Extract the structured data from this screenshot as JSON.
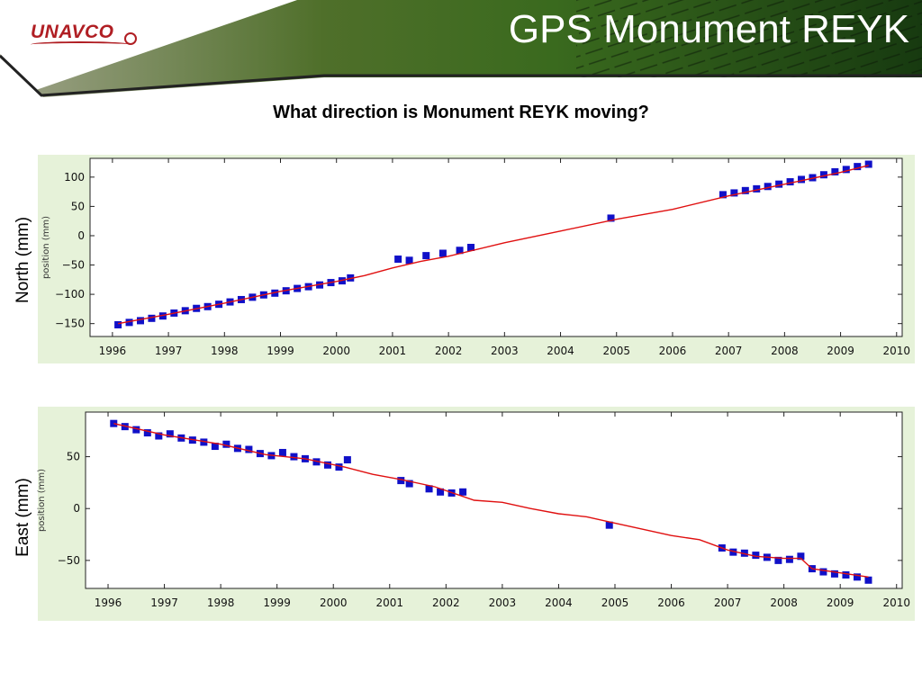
{
  "header": {
    "logo_text": "UNAVCO",
    "title": "GPS Monument REYK"
  },
  "question": "What direction is Monument REYK moving?",
  "chart_data": [
    {
      "type": "scatter",
      "side_label": "North (mm)",
      "ylabel": "position (mm)",
      "xlabel": "",
      "xlim": [
        1995.6,
        2010.1
      ],
      "ylim": [
        -172,
        132
      ],
      "xticks": [
        1996,
        1997,
        1998,
        1999,
        2000,
        2001,
        2002,
        2003,
        2004,
        2005,
        2006,
        2007,
        2008,
        2009,
        2010
      ],
      "yticks": [
        100,
        50,
        0,
        -50,
        -100,
        -150
      ],
      "grid": false,
      "series": [
        {
          "kind": "observations",
          "color": "#1010c8",
          "x": [
            1996.1,
            1996.3,
            1996.5,
            1996.7,
            1996.9,
            1997.1,
            1997.3,
            1997.5,
            1997.7,
            1997.9,
            1998.1,
            1998.3,
            1998.5,
            1998.7,
            1998.9,
            1999.1,
            1999.3,
            1999.5,
            1999.7,
            1999.9,
            2000.1,
            2000.25,
            2001.1,
            2001.3,
            2001.6,
            2001.9,
            2002.2,
            2002.4,
            2004.9,
            2006.9,
            2007.1,
            2007.3,
            2007.5,
            2007.7,
            2007.9,
            2008.1,
            2008.3,
            2008.5,
            2008.7,
            2008.9,
            2009.1,
            2009.3,
            2009.5
          ],
          "y": [
            -152,
            -148,
            -145,
            -141,
            -137,
            -132,
            -128,
            -124,
            -121,
            -117,
            -113,
            -109,
            -105,
            -101,
            -98,
            -94,
            -90,
            -87,
            -84,
            -80,
            -77,
            -72,
            -40,
            -42,
            -34,
            -30,
            -25,
            -20,
            30,
            70,
            73,
            77,
            80,
            84,
            88,
            92,
            96,
            99,
            104,
            109,
            113,
            118,
            122
          ]
        },
        {
          "kind": "model",
          "color": "#e01010",
          "x": [
            1996.1,
            1997.0,
            1998.0,
            1999.0,
            2000.0,
            2000.5,
            2001.0,
            2001.5,
            2002.0,
            2003.0,
            2004.0,
            2005.0,
            2006.0,
            2007.0,
            2008.0,
            2009.0,
            2009.5
          ],
          "y": [
            -150,
            -134,
            -115,
            -95,
            -78,
            -68,
            -55,
            -44,
            -35,
            -12,
            8,
            28,
            45,
            68,
            88,
            108,
            120
          ]
        }
      ]
    },
    {
      "type": "scatter",
      "side_label": "East (mm)",
      "ylabel": "position (mm)",
      "xlabel": "",
      "xlim": [
        1995.6,
        2010.1
      ],
      "ylim": [
        -77,
        93
      ],
      "xticks": [
        1996,
        1997,
        1998,
        1999,
        2000,
        2001,
        2002,
        2003,
        2004,
        2005,
        2006,
        2007,
        2008,
        2009,
        2010
      ],
      "yticks": [
        50,
        0,
        -50
      ],
      "grid": false,
      "series": [
        {
          "kind": "observations",
          "color": "#1010c8",
          "x": [
            1996.1,
            1996.3,
            1996.5,
            1996.7,
            1996.9,
            1997.1,
            1997.3,
            1997.5,
            1997.7,
            1997.9,
            1998.1,
            1998.3,
            1998.5,
            1998.7,
            1998.9,
            1999.1,
            1999.3,
            1999.5,
            1999.7,
            1999.9,
            2000.1,
            2000.25,
            2001.2,
            2001.35,
            2001.7,
            2001.9,
            2002.1,
            2002.3,
            2004.9,
            2006.9,
            2007.1,
            2007.3,
            2007.5,
            2007.7,
            2007.9,
            2008.1,
            2008.3,
            2008.5,
            2008.7,
            2008.9,
            2009.1,
            2009.3,
            2009.5
          ],
          "y": [
            82,
            79,
            76,
            73,
            70,
            72,
            68,
            66,
            64,
            60,
            62,
            58,
            57,
            53,
            51,
            54,
            50,
            48,
            45,
            42,
            40,
            47,
            27,
            24,
            19,
            16,
            15,
            16,
            -16,
            -38,
            -42,
            -43,
            -45,
            -47,
            -50,
            -49,
            -46,
            -58,
            -61,
            -63,
            -64,
            -66,
            -69
          ]
        },
        {
          "kind": "model",
          "color": "#e01010",
          "x": [
            1996.1,
            1997.0,
            1998.0,
            1998.8,
            1999.5,
            2000.2,
            2000.7,
            2001.2,
            2001.8,
            2002.5,
            2003.0,
            2003.5,
            2004.0,
            2004.5,
            2005.0,
            2005.5,
            2006.0,
            2006.5,
            2007.0,
            2007.5,
            2008.0,
            2008.3,
            2008.5,
            2009.0,
            2009.5
          ],
          "y": [
            82,
            71,
            62,
            52,
            48,
            40,
            33,
            28,
            21,
            8,
            6,
            0,
            -5,
            -8,
            -14,
            -20,
            -26,
            -30,
            -40,
            -46,
            -48,
            -48,
            -58,
            -62,
            -66
          ]
        }
      ]
    }
  ]
}
